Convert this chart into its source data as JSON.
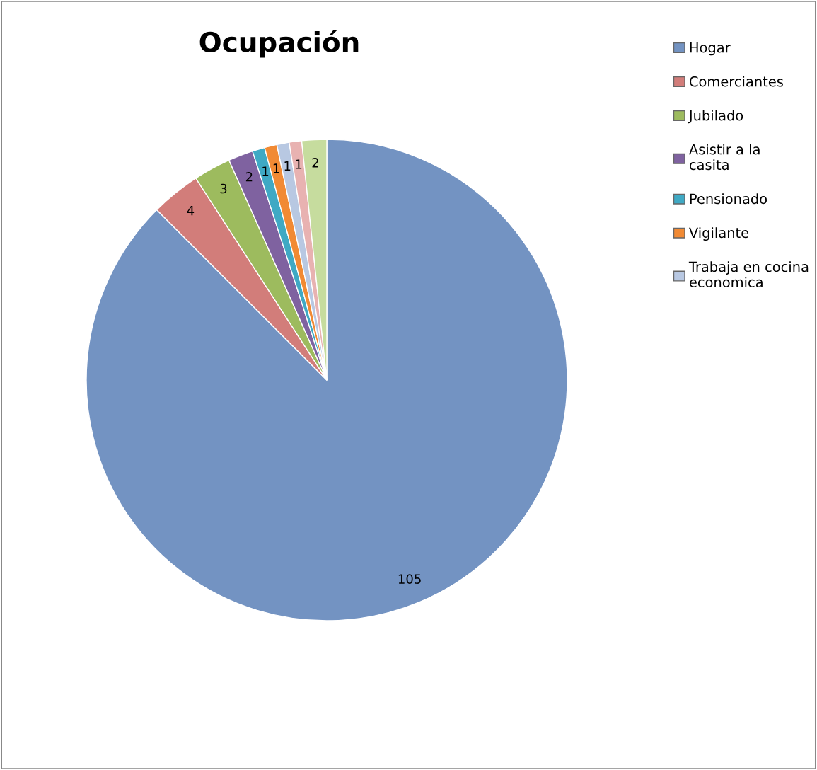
{
  "chart_data": {
    "type": "pie",
    "title": "Ocupación",
    "categories": [
      "Hogar",
      "Comerciantes",
      "Jubilado",
      "Asistir a la casita",
      "Pensionado",
      "Vigilante",
      "Trabaja en cocina economica",
      null,
      null
    ],
    "values": [
      105,
      4,
      3,
      2,
      1,
      1,
      1,
      1,
      2
    ],
    "colors": [
      "#7393c2",
      "#d27d7a",
      "#9dbb5e",
      "#7f62a0",
      "#3fa9c4",
      "#f18a34",
      "#b8c8e2",
      "#e8b2b1",
      "#c6dc9e"
    ],
    "data_labels": true,
    "legend": "top right"
  }
}
